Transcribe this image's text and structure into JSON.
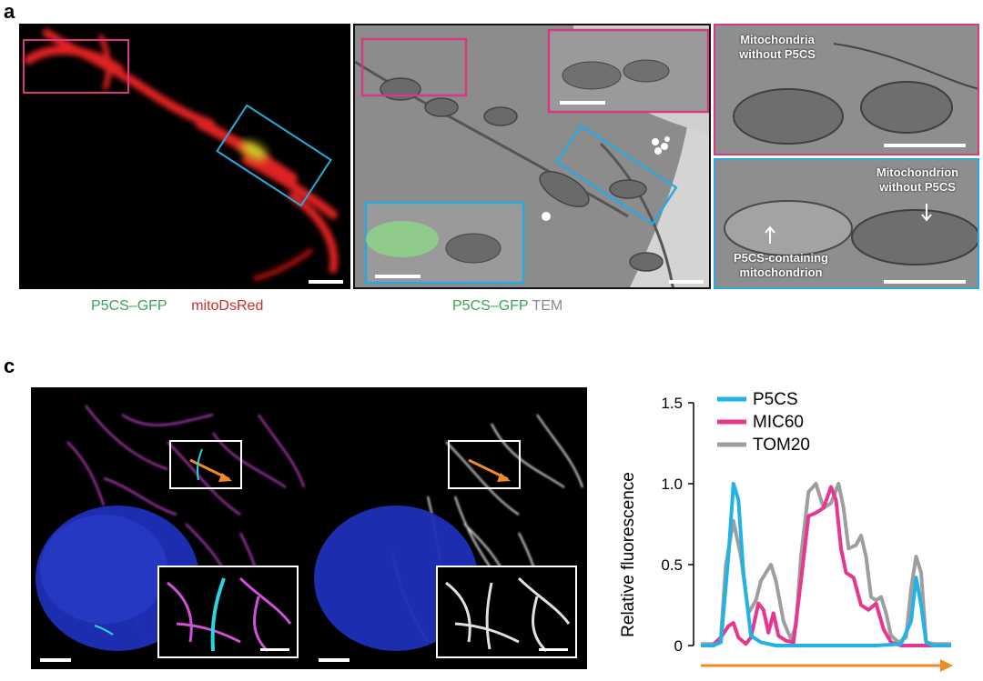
{
  "panel_a": {
    "letter": "a",
    "fluor_legend": {
      "p5cs": "P5CS–GFP",
      "mito": "mitoDsRed"
    },
    "tem_legend": {
      "p5cs": "P5CS–GFP",
      "tem": "TEM"
    },
    "zoom_top_label": "Mitochondria\nwithout P5CS",
    "zoom_bottom_label_right": "Mitochondrion\nwithout P5CS",
    "zoom_bottom_label_left": "P5CS-containing\nmitochondrion"
  },
  "panel_c": {
    "letter": "c"
  },
  "colors": {
    "p5cs_green": "#3aa655",
    "mito_red": "#d62a2a",
    "tem_gray": "#8a8a8a",
    "magenta_box": "#d6397f",
    "cyan_box": "#2aa8e0",
    "orange": "#f08a24"
  },
  "chart_data": {
    "type": "line",
    "ylabel": "Relative fluorescence",
    "xlabel": "",
    "yticks": [
      "0",
      "0.5",
      "1.0",
      "1.5"
    ],
    "ylim": [
      0,
      1.5
    ],
    "xlim": [
      0,
      1
    ],
    "legend_position": "top-left",
    "series": [
      {
        "name": "TOM20",
        "color": "#9e9e9e",
        "x": [
          0,
          0.05,
          0.08,
          0.1,
          0.13,
          0.16,
          0.19,
          0.22,
          0.24,
          0.26,
          0.28,
          0.3,
          0.33,
          0.36,
          0.38,
          0.4,
          0.43,
          0.46,
          0.49,
          0.52,
          0.55,
          0.57,
          0.59,
          0.62,
          0.64,
          0.66,
          0.68,
          0.7,
          0.72,
          0.74,
          0.76,
          0.79,
          0.82,
          0.84,
          0.86,
          0.88,
          0.9,
          0.93,
          1.0
        ],
        "y": [
          0.01,
          0.01,
          0.05,
          0.5,
          0.77,
          0.55,
          0.2,
          0.28,
          0.4,
          0.45,
          0.5,
          0.4,
          0.15,
          0.04,
          0.12,
          0.55,
          0.95,
          1.0,
          0.85,
          0.88,
          1.0,
          0.85,
          0.6,
          0.62,
          0.68,
          0.55,
          0.3,
          0.28,
          0.3,
          0.2,
          0.06,
          0.02,
          0.05,
          0.35,
          0.55,
          0.45,
          0.02,
          0.01,
          0.01
        ]
      },
      {
        "name": "MIC60",
        "color": "#e8368f",
        "x": [
          0,
          0.05,
          0.08,
          0.11,
          0.13,
          0.15,
          0.18,
          0.2,
          0.23,
          0.25,
          0.27,
          0.29,
          0.31,
          0.34,
          0.37,
          0.4,
          0.43,
          0.46,
          0.49,
          0.52,
          0.54,
          0.56,
          0.58,
          0.61,
          0.64,
          0.67,
          0.7,
          0.73,
          0.76,
          0.8,
          1.0
        ],
        "y": [
          0.0,
          0.0,
          0.05,
          0.12,
          0.14,
          0.05,
          0.01,
          0.05,
          0.26,
          0.22,
          0.08,
          0.2,
          0.06,
          0.03,
          0.02,
          0.4,
          0.8,
          0.82,
          0.85,
          0.98,
          0.9,
          0.6,
          0.45,
          0.42,
          0.25,
          0.22,
          0.26,
          0.1,
          0.02,
          0.0,
          0.0
        ]
      },
      {
        "name": "P5CS",
        "color": "#21b3e6",
        "x": [
          0,
          0.05,
          0.08,
          0.11,
          0.13,
          0.15,
          0.17,
          0.2,
          0.24,
          0.3,
          0.5,
          0.7,
          0.8,
          0.84,
          0.86,
          0.88,
          0.9,
          0.93,
          1.0
        ],
        "y": [
          0.0,
          0.0,
          0.02,
          0.55,
          1.0,
          0.9,
          0.45,
          0.06,
          0.02,
          0.0,
          0.0,
          0.0,
          0.01,
          0.15,
          0.42,
          0.25,
          0.02,
          0.0,
          0.0
        ]
      }
    ]
  }
}
